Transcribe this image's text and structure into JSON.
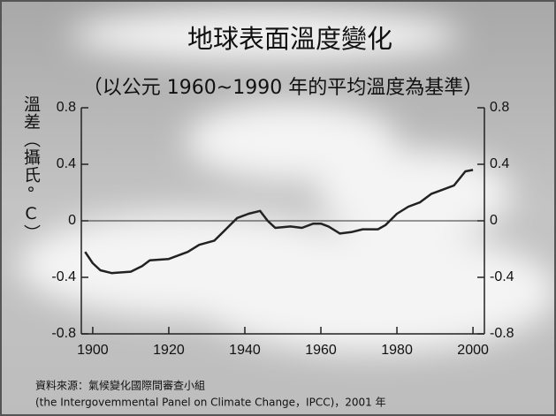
{
  "chart_data": {
    "type": "line",
    "title": "地球表面溫度變化",
    "subtitle": "（以公元 1960~1990 年的平均溫度為基準）",
    "y_label": "溫差（攝氏°C）",
    "x": [
      1898,
      1900,
      1902,
      1905,
      1910,
      1913,
      1915,
      1920,
      1925,
      1928,
      1932,
      1935,
      1938,
      1941,
      1944,
      1946,
      1948,
      1952,
      1955,
      1958,
      1960,
      1962,
      1965,
      1968,
      1971,
      1975,
      1977,
      1980,
      1983,
      1986,
      1989,
      1992,
      1995,
      1998,
      2000
    ],
    "series": [
      {
        "color": "#222222",
        "values": [
          -0.22,
          -0.3,
          -0.35,
          -0.37,
          -0.36,
          -0.32,
          -0.28,
          -0.27,
          -0.22,
          -0.17,
          -0.14,
          -0.06,
          0.02,
          0.05,
          0.07,
          0.0,
          -0.05,
          -0.04,
          -0.05,
          -0.02,
          -0.02,
          -0.04,
          -0.09,
          -0.08,
          -0.06,
          -0.06,
          -0.03,
          0.05,
          0.1,
          0.13,
          0.19,
          0.22,
          0.25,
          0.35,
          0.36
        ]
      }
    ],
    "xlim": [
      1897,
      2003
    ],
    "xticks": [
      1900,
      1920,
      1940,
      1960,
      1980,
      2000
    ],
    "ylim": [
      -0.8,
      0.8
    ],
    "yticks": [
      -0.8,
      -0.4,
      0,
      0.4,
      0.8
    ],
    "y2lim": [
      -0.8,
      0.8
    ],
    "y2ticks": [
      -0.8,
      -0.4,
      0,
      0.4,
      0.8
    ],
    "source": [
      "資料來源：氣候變化國際間審查小組",
      "(the Intergovemmental Panel on Climate Change，IPCC)，2001 年"
    ]
  }
}
